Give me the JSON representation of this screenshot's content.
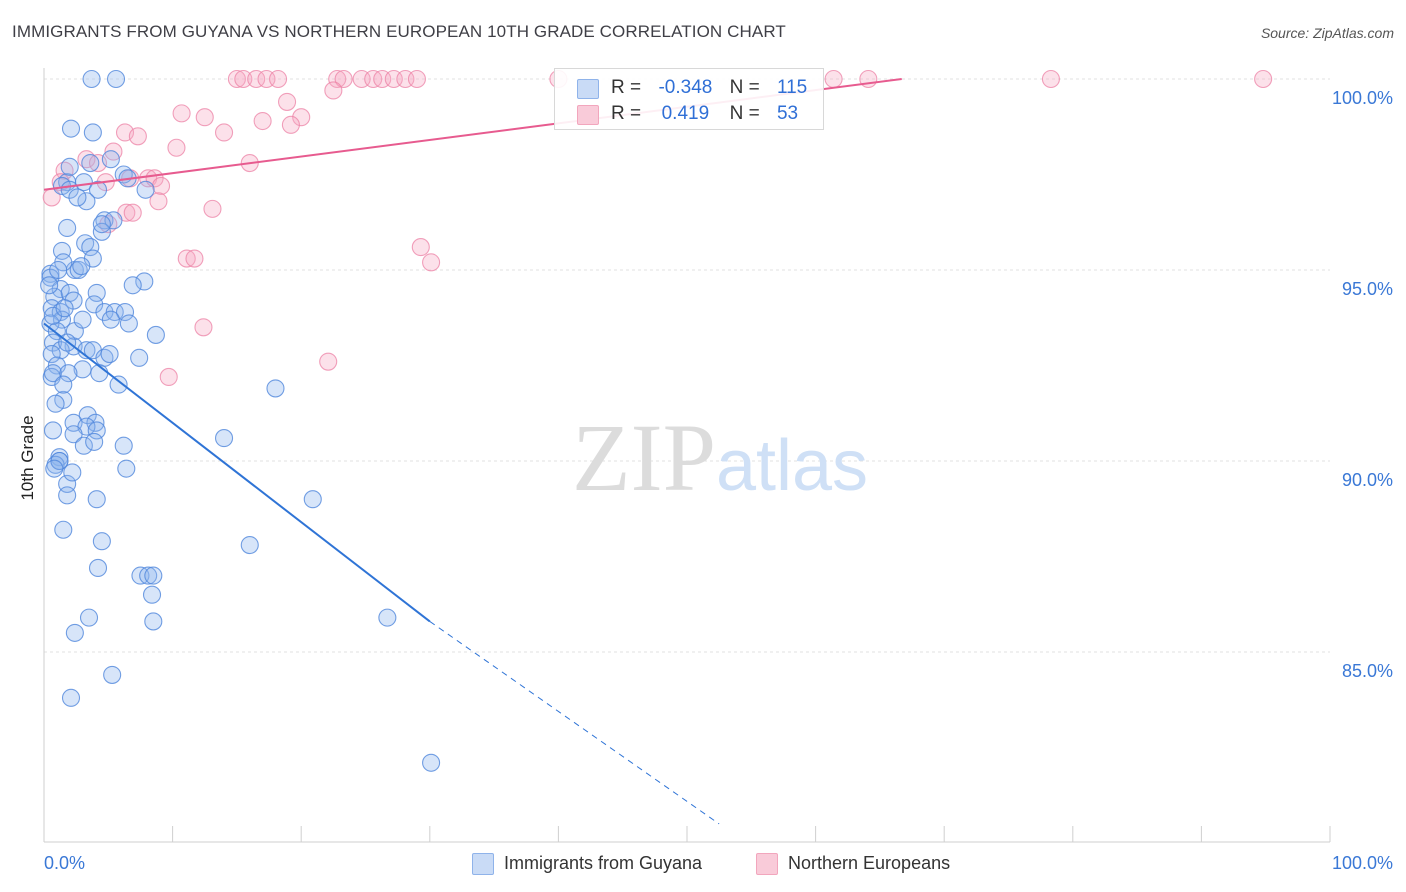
{
  "chart_data": {
    "type": "scatter",
    "title": "IMMIGRANTS FROM GUYANA VS NORTHERN EUROPEAN 10TH GRADE CORRELATION CHART",
    "source": "Source: ZipAtlas.com",
    "ylabel": "10th Grade",
    "xlabel": "",
    "xlim": [
      0,
      100
    ],
    "ylim": [
      80.5,
      101
    ],
    "x_ticks": [
      "0.0%",
      "100.0%"
    ],
    "y_ticks": [
      {
        "value": 100,
        "label": "100.0%"
      },
      {
        "value": 95,
        "label": "95.0%"
      },
      {
        "value": 90,
        "label": "90.0%"
      },
      {
        "value": 85,
        "label": "85.0%"
      }
    ],
    "grid": true,
    "watermark": "ZIPatlas",
    "legend": {
      "rows": [
        {
          "r_label": "R =",
          "r": "-0.348",
          "n_label": "N =",
          "n": "115",
          "color": "#8fb3ea"
        },
        {
          "r_label": "R =",
          "r": "0.419",
          "n_label": "N =",
          "n": "53",
          "color": "#f2a6bd"
        }
      ]
    },
    "series": [
      {
        "name": "Immigrants from Guyana",
        "color": "#5f97e6",
        "line_color": "#2f74d6",
        "trend": {
          "solid": [
            [
              0,
              93.6
            ],
            [
              30,
              85.8
            ]
          ],
          "dashed": [
            [
              30,
              85.8
            ],
            [
              52.5,
              80.5
            ]
          ]
        },
        "points": [
          [
            3.7,
            100
          ],
          [
            5.6,
            100
          ],
          [
            2.1,
            98.7
          ],
          [
            3.8,
            98.6
          ],
          [
            5.2,
            97.9
          ],
          [
            3.6,
            97.8
          ],
          [
            3.1,
            97.3
          ],
          [
            1.8,
            97.3
          ],
          [
            1.4,
            97.2
          ],
          [
            2.0,
            97.1
          ],
          [
            4.2,
            97.1
          ],
          [
            6.2,
            97.5
          ],
          [
            7.9,
            97.1
          ],
          [
            3.3,
            96.8
          ],
          [
            4.7,
            96.3
          ],
          [
            5.4,
            96.3
          ],
          [
            1.8,
            96.1
          ],
          [
            4.5,
            96.0
          ],
          [
            3.2,
            95.7
          ],
          [
            3.6,
            95.6
          ],
          [
            1.4,
            95.5
          ],
          [
            3.8,
            95.3
          ],
          [
            2.4,
            95.0
          ],
          [
            2.7,
            95.0
          ],
          [
            1.5,
            95.2
          ],
          [
            0.5,
            94.9
          ],
          [
            7.8,
            94.7
          ],
          [
            0.5,
            94.8
          ],
          [
            1.3,
            94.5
          ],
          [
            0.8,
            94.3
          ],
          [
            2.0,
            94.4
          ],
          [
            4.1,
            94.4
          ],
          [
            2.3,
            94.2
          ],
          [
            3.9,
            94.1
          ],
          [
            0.6,
            94.0
          ],
          [
            1.3,
            93.9
          ],
          [
            4.7,
            93.9
          ],
          [
            5.5,
            93.9
          ],
          [
            6.3,
            93.9
          ],
          [
            1.4,
            93.7
          ],
          [
            5.2,
            93.7
          ],
          [
            6.6,
            93.6
          ],
          [
            0.5,
            93.6
          ],
          [
            1.0,
            93.4
          ],
          [
            2.4,
            93.4
          ],
          [
            8.7,
            93.3
          ],
          [
            0.7,
            93.1
          ],
          [
            2.3,
            93.0
          ],
          [
            1.3,
            92.9
          ],
          [
            3.3,
            92.9
          ],
          [
            3.8,
            92.9
          ],
          [
            0.6,
            92.8
          ],
          [
            7.4,
            92.7
          ],
          [
            4.7,
            92.7
          ],
          [
            1.0,
            92.5
          ],
          [
            3.0,
            92.4
          ],
          [
            4.3,
            92.3
          ],
          [
            0.6,
            92.2
          ],
          [
            0.7,
            92.3
          ],
          [
            5.8,
            92.0
          ],
          [
            18.0,
            91.9
          ],
          [
            1.5,
            91.6
          ],
          [
            3.4,
            91.2
          ],
          [
            2.3,
            91.0
          ],
          [
            4.0,
            91.0
          ],
          [
            3.3,
            90.9
          ],
          [
            0.7,
            90.8
          ],
          [
            4.1,
            90.8
          ],
          [
            2.3,
            90.7
          ],
          [
            14.0,
            90.6
          ],
          [
            6.2,
            90.4
          ],
          [
            3.1,
            90.4
          ],
          [
            1.2,
            90.1
          ],
          [
            1.2,
            90.0
          ],
          [
            0.9,
            89.9
          ],
          [
            1.2,
            90.0
          ],
          [
            6.4,
            89.8
          ],
          [
            0.8,
            89.8
          ],
          [
            1.8,
            89.4
          ],
          [
            1.8,
            89.1
          ],
          [
            4.1,
            89.0
          ],
          [
            20.9,
            89.0
          ],
          [
            1.5,
            88.2
          ],
          [
            4.5,
            87.9
          ],
          [
            16.0,
            87.8
          ],
          [
            4.2,
            87.2
          ],
          [
            7.5,
            87.0
          ],
          [
            8.1,
            87.0
          ],
          [
            8.5,
            87.0
          ],
          [
            8.4,
            86.5
          ],
          [
            8.5,
            85.8
          ],
          [
            3.5,
            85.9
          ],
          [
            26.7,
            85.9
          ],
          [
            2.4,
            85.5
          ],
          [
            5.3,
            84.4
          ],
          [
            2.1,
            83.8
          ],
          [
            30.1,
            82.1
          ],
          [
            0.7,
            93.8
          ],
          [
            1.8,
            93.1
          ],
          [
            0.4,
            94.6
          ],
          [
            2.9,
            95.1
          ],
          [
            4.5,
            96.2
          ],
          [
            6.5,
            97.4
          ],
          [
            2.6,
            96.9
          ],
          [
            1.6,
            94.0
          ],
          [
            3.9,
            90.5
          ],
          [
            1.9,
            92.3
          ],
          [
            5.1,
            92.8
          ],
          [
            0.9,
            91.5
          ],
          [
            2.2,
            89.7
          ],
          [
            3.0,
            93.7
          ],
          [
            1.1,
            95.0
          ],
          [
            6.9,
            94.6
          ],
          [
            2.0,
            97.7
          ],
          [
            1.5,
            92.0
          ]
        ]
      },
      {
        "name": "Northern Europeans",
        "color": "#f090ae",
        "line_color": "#e75b8f",
        "trend": {
          "solid": [
            [
              0,
              97.1
            ],
            [
              66.7,
              100
            ]
          ]
        },
        "points": [
          [
            15.0,
            100
          ],
          [
            15.5,
            100
          ],
          [
            16.5,
            100
          ],
          [
            17.3,
            100
          ],
          [
            18.2,
            100
          ],
          [
            22.8,
            100
          ],
          [
            23.3,
            100
          ],
          [
            24.7,
            100
          ],
          [
            25.6,
            100
          ],
          [
            26.3,
            100
          ],
          [
            27.2,
            100
          ],
          [
            28.1,
            100
          ],
          [
            29.0,
            100
          ],
          [
            40.0,
            100
          ],
          [
            61.4,
            100
          ],
          [
            64.1,
            100
          ],
          [
            78.3,
            100
          ],
          [
            94.8,
            100
          ],
          [
            22.5,
            99.7
          ],
          [
            18.9,
            99.4
          ],
          [
            10.7,
            99.1
          ],
          [
            12.5,
            99.0
          ],
          [
            17.0,
            98.9
          ],
          [
            20.0,
            99.0
          ],
          [
            19.2,
            98.8
          ],
          [
            6.3,
            98.6
          ],
          [
            7.3,
            98.5
          ],
          [
            14.0,
            98.6
          ],
          [
            10.3,
            98.2
          ],
          [
            5.4,
            98.1
          ],
          [
            3.3,
            97.9
          ],
          [
            4.2,
            97.8
          ],
          [
            16.0,
            97.8
          ],
          [
            1.6,
            97.6
          ],
          [
            1.3,
            97.3
          ],
          [
            8.1,
            97.4
          ],
          [
            8.6,
            97.4
          ],
          [
            6.7,
            97.4
          ],
          [
            9.1,
            97.2
          ],
          [
            4.8,
            97.3
          ],
          [
            0.6,
            96.9
          ],
          [
            8.9,
            96.8
          ],
          [
            6.4,
            96.5
          ],
          [
            6.9,
            96.5
          ],
          [
            13.1,
            96.6
          ],
          [
            5.0,
            96.2
          ],
          [
            29.3,
            95.6
          ],
          [
            30.1,
            95.2
          ],
          [
            11.1,
            95.3
          ],
          [
            11.7,
            95.3
          ],
          [
            12.4,
            93.5
          ],
          [
            9.7,
            92.2
          ],
          [
            22.1,
            92.6
          ]
        ]
      }
    ]
  }
}
